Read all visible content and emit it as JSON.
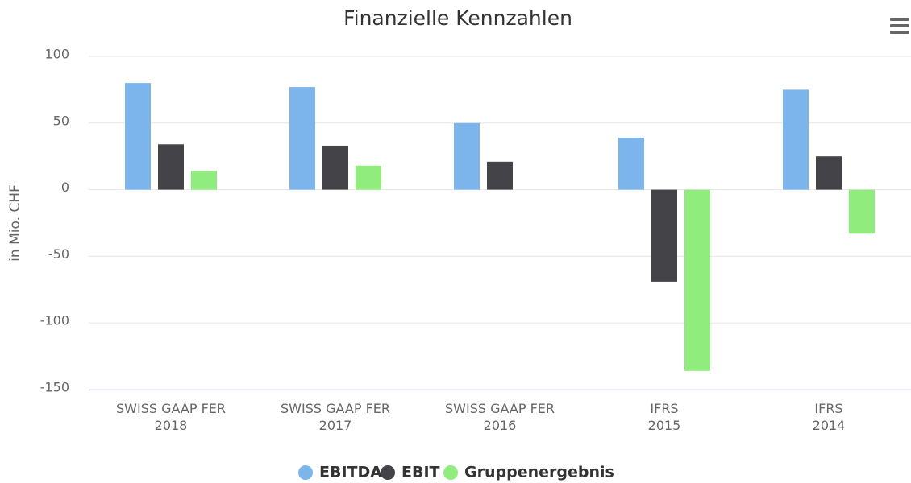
{
  "chart_data": {
    "type": "bar",
    "title": "Finanzielle Kennzahlen",
    "y_axis_label": "in Mio. CHF",
    "categories": [
      [
        "SWISS GAAP FER",
        "2018"
      ],
      [
        "SWISS GAAP FER",
        "2017"
      ],
      [
        "SWISS GAAP FER",
        "2016"
      ],
      [
        "IFRS",
        "2015"
      ],
      [
        "IFRS",
        "2014"
      ]
    ],
    "series": [
      {
        "name": "EBITDA",
        "color": "#7cb5ec",
        "values": [
          80,
          77,
          50,
          39,
          75
        ]
      },
      {
        "name": "EBIT",
        "color": "#434348",
        "values": [
          34,
          33,
          21,
          -69,
          25
        ]
      },
      {
        "name": "Gruppenergebnis",
        "color": "#90ed7d",
        "values": [
          14,
          18,
          0,
          -136,
          -33
        ]
      }
    ],
    "ylim": [
      -150,
      100
    ],
    "yticks": [
      -150,
      -100,
      -50,
      0,
      50,
      100
    ],
    "grid": true
  }
}
